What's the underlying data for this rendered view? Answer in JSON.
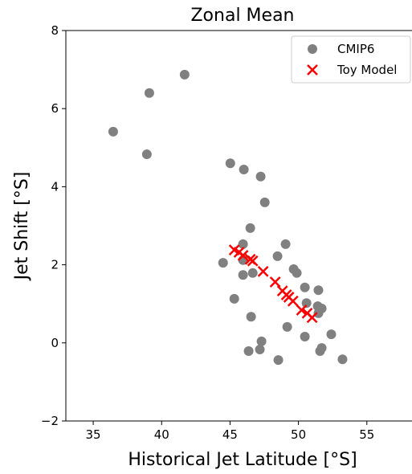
{
  "chart_data": {
    "type": "scatter",
    "title": "Zonal Mean",
    "x_label": "Historical Jet Latitude [°S]",
    "y_label": "Jet Shift [°S]",
    "xlim": [
      33,
      58.3
    ],
    "ylim": [
      -2,
      8
    ],
    "xticks": [
      35,
      40,
      45,
      50,
      55
    ],
    "yticks": [
      {
        "value": -2,
        "label": "−2"
      },
      0,
      2,
      4,
      6,
      8
    ],
    "legend": "upper right",
    "series": [
      {
        "name": "CMIP6",
        "color": "#808080",
        "marker": "circle",
        "x": [
          41.68,
          39.1,
          36.46,
          38.92,
          45.02,
          46.01,
          47.24,
          47.54,
          46.48,
          49.06,
          45.95,
          48.47,
          44.49,
          45.95,
          49.65,
          49.88,
          46.66,
          45.95,
          50.47,
          51.46,
          45.31,
          50.59,
          51.41,
          51.7,
          51.46,
          46.54,
          49.18,
          52.4,
          50.47,
          47.3,
          51.7,
          47.18,
          51.58,
          46.36,
          48.53,
          53.22
        ],
        "values": [
          6.87,
          6.4,
          5.41,
          4.83,
          4.6,
          4.44,
          4.26,
          3.6,
          2.94,
          2.53,
          2.53,
          2.22,
          2.05,
          2.12,
          1.89,
          1.79,
          1.79,
          1.74,
          1.42,
          1.35,
          1.13,
          1.02,
          0.94,
          0.88,
          0.76,
          0.67,
          0.41,
          0.22,
          0.16,
          0.04,
          -0.13,
          -0.17,
          -0.21,
          -0.21,
          -0.44,
          -0.42
        ]
      },
      {
        "name": "Toy Model",
        "color": "#ff0000",
        "marker": "x",
        "x": [
          45.31,
          45.66,
          45.95,
          46.48,
          46.66,
          47.42,
          48.3,
          48.83,
          49.12,
          49.3,
          49.6,
          50.23,
          50.64,
          51.0
        ],
        "values": [
          2.38,
          2.32,
          2.24,
          2.14,
          2.1,
          1.83,
          1.56,
          1.33,
          1.23,
          1.17,
          1.07,
          0.84,
          0.76,
          0.65
        ]
      }
    ]
  }
}
